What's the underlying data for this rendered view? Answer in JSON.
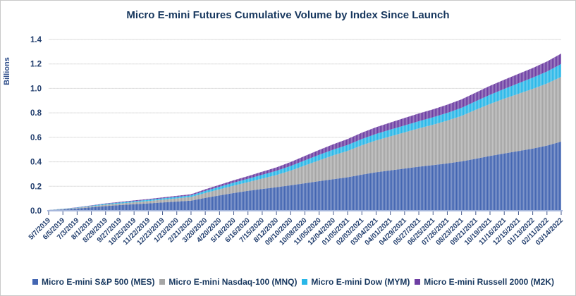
{
  "title": "Micro E-mini Futures Cumulative Volume by Index Since Launch",
  "y_axis_title": "Billions",
  "colors": {
    "title_text": "#17375E",
    "axis_text": "#24406F",
    "gridline": "#D9D9D9",
    "axis_line": "#A6B7DB",
    "mes_blue": "#4466B2",
    "mnq_gray": "#A6A6A6",
    "mym_cyan": "#29B7E8",
    "m2k_purple": "#6E3FA3"
  },
  "chart_data": {
    "type": "area",
    "stacked": true,
    "title": "Micro E-mini Futures Cumulative Volume by Index Since Launch",
    "xlabel": "",
    "ylabel": "Billions",
    "ylim": [
      0,
      1.4
    ],
    "ytick_labels": [
      "0.0",
      "0.2",
      "0.4",
      "0.6",
      "0.8",
      "1.0",
      "1.2",
      "1.4"
    ],
    "grid": true,
    "legend_position": "bottom",
    "categories": [
      "5/7/2019",
      "6/5/2019",
      "7/3/2019",
      "8/1/2019",
      "8/29/2019",
      "9/27/2019",
      "10/25/2019",
      "11/22/2019",
      "12/23/2019",
      "1/23/2020",
      "2/21/2020",
      "3/20/2020",
      "4/20/2020",
      "5/18/2020",
      "6/16/2020",
      "7/15/2020",
      "8/12/2020",
      "09/10/2020",
      "10/08/2020",
      "11/05/2020",
      "12/04/2020",
      "01/05/2021",
      "02/03/2021",
      "03/04/2021",
      "04/01/2021",
      "04/29/2021",
      "05/27/2021",
      "06/25/2021",
      "07/26/2021",
      "08/23/2021",
      "09/21/2021",
      "10/19/2021",
      "11/16/2021",
      "12/15/2021",
      "01/13/2022",
      "02/11/2022",
      "03/14/2022"
    ],
    "series": [
      {
        "name": "Micro E-mini S&P 500 (MES)",
        "color": "#4466B2",
        "values": [
          0.004,
          0.01,
          0.018,
          0.028,
          0.038,
          0.046,
          0.053,
          0.06,
          0.068,
          0.075,
          0.082,
          0.105,
          0.125,
          0.145,
          0.163,
          0.178,
          0.192,
          0.208,
          0.225,
          0.242,
          0.258,
          0.274,
          0.295,
          0.315,
          0.33,
          0.345,
          0.36,
          0.373,
          0.387,
          0.403,
          0.425,
          0.448,
          0.468,
          0.488,
          0.508,
          0.532,
          0.565
        ]
      },
      {
        "name": "Micro E-mini Nasdaq-100 (MNQ)",
        "color": "#A6A6A6",
        "values": [
          0.001,
          0.003,
          0.005,
          0.008,
          0.011,
          0.013,
          0.016,
          0.019,
          0.022,
          0.026,
          0.03,
          0.04,
          0.05,
          0.06,
          0.07,
          0.085,
          0.1,
          0.12,
          0.145,
          0.17,
          0.195,
          0.215,
          0.24,
          0.26,
          0.278,
          0.295,
          0.313,
          0.33,
          0.35,
          0.372,
          0.4,
          0.425,
          0.448,
          0.468,
          0.488,
          0.508,
          0.53
        ]
      },
      {
        "name": "Micro E-mini Dow (MYM)",
        "color": "#29B7E8",
        "values": [
          0.001,
          0.002,
          0.003,
          0.005,
          0.007,
          0.008,
          0.009,
          0.01,
          0.011,
          0.012,
          0.013,
          0.017,
          0.021,
          0.025,
          0.028,
          0.031,
          0.034,
          0.038,
          0.042,
          0.045,
          0.047,
          0.049,
          0.051,
          0.053,
          0.055,
          0.057,
          0.059,
          0.061,
          0.063,
          0.066,
          0.07,
          0.075,
          0.08,
          0.086,
          0.092,
          0.098,
          0.105
        ]
      },
      {
        "name": "Micro E-mini Russell 2000 (M2K)",
        "color": "#6E3FA3",
        "values": [
          0.0005,
          0.001,
          0.002,
          0.003,
          0.004,
          0.005,
          0.006,
          0.007,
          0.008,
          0.009,
          0.01,
          0.013,
          0.016,
          0.019,
          0.022,
          0.025,
          0.028,
          0.032,
          0.036,
          0.04,
          0.044,
          0.048,
          0.052,
          0.055,
          0.058,
          0.061,
          0.063,
          0.065,
          0.067,
          0.069,
          0.071,
          0.073,
          0.075,
          0.077,
          0.079,
          0.082,
          0.085
        ]
      }
    ]
  }
}
